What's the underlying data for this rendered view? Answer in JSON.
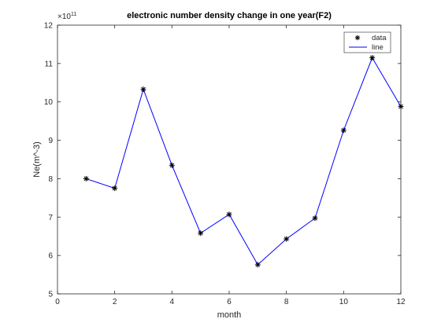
{
  "chart_data": {
    "type": "line",
    "title": "electronic number density change in one year(F2)",
    "xlabel": "month",
    "ylabel": "Ne(m^-3)",
    "y_exponent": "×10",
    "y_exponent_power": "11",
    "xlim": [
      0,
      12
    ],
    "ylim": [
      5,
      12
    ],
    "xticks": [
      "0",
      "2",
      "4",
      "6",
      "8",
      "10",
      "12"
    ],
    "yticks": [
      "5",
      "6",
      "7",
      "8",
      "9",
      "10",
      "11",
      "12"
    ],
    "grid": false,
    "legend_position": "top-right",
    "series": [
      {
        "name": "data",
        "marker": "asterisk",
        "color": "#000000",
        "x": [
          1,
          2,
          3,
          4,
          5,
          6,
          7,
          8,
          9,
          10,
          11,
          12
        ],
        "y": [
          8.0,
          7.75,
          10.33,
          8.35,
          6.58,
          7.07,
          5.76,
          6.43,
          6.97,
          9.26,
          11.15,
          9.88
        ]
      },
      {
        "name": "line",
        "color": "#0000ff",
        "x": [
          1,
          2,
          3,
          4,
          5,
          6,
          7,
          8,
          9,
          10,
          11,
          12
        ],
        "y": [
          8.0,
          7.75,
          10.33,
          8.35,
          6.58,
          7.07,
          5.76,
          6.43,
          6.97,
          9.26,
          11.15,
          9.88
        ]
      }
    ]
  }
}
